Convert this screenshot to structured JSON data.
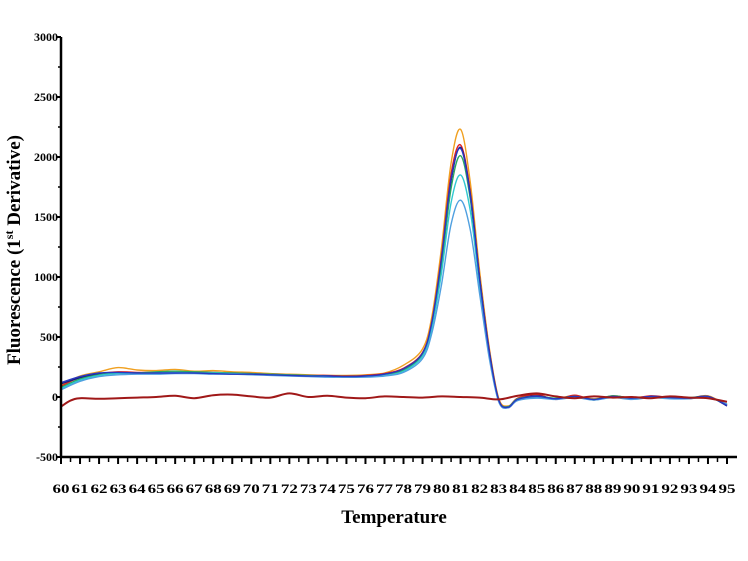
{
  "chart_data": {
    "type": "line",
    "title": "",
    "xlabel": "Temperature",
    "ylabel": "Fluorescence (1",
    "ylabel_sup": "st",
    "ylabel_end": " Derivative)",
    "xlim": [
      60,
      95
    ],
    "ylim": [
      -500,
      3000
    ],
    "yticks": [
      -500,
      0,
      500,
      1000,
      1500,
      2000,
      2500,
      3000
    ],
    "ytick_labels": [
      "-500",
      "0",
      "500",
      "1000",
      "1500",
      "2000",
      "2500",
      "3000"
    ],
    "xticks": [
      60,
      61,
      62,
      63,
      64,
      65,
      66,
      67,
      68,
      69,
      70,
      71,
      72,
      73,
      74,
      75,
      76,
      77,
      78,
      79,
      80,
      81,
      82,
      83,
      84,
      85,
      86,
      87,
      88,
      89,
      90,
      91,
      92,
      93,
      94,
      95
    ],
    "xtick_labels": [
      "60",
      "61",
      "62",
      "63",
      "64",
      "65",
      "66",
      "67",
      "68",
      "69",
      "70",
      "71",
      "72",
      "73",
      "74",
      "75",
      "76",
      "77",
      "78",
      "79",
      "80",
      "81",
      "82",
      "83",
      "84",
      "85",
      "86",
      "87",
      "88",
      "89",
      "90",
      "91",
      "92",
      "93",
      "94",
      "95"
    ],
    "grid": false,
    "legend": "none",
    "series": [
      {
        "color": "#f0a020",
        "x": [
          60,
          61,
          62,
          63,
          64,
          65,
          66,
          67,
          68,
          69,
          70,
          71,
          72,
          73,
          74,
          75,
          76,
          77,
          78,
          79,
          79.5,
          80,
          80.5,
          81,
          81.5,
          82,
          82.5,
          83,
          83.5,
          84,
          85,
          86,
          87,
          88,
          89,
          90,
          91,
          92,
          93,
          94,
          95
        ],
        "y": [
          100,
          175,
          210,
          245,
          225,
          220,
          230,
          215,
          220,
          210,
          205,
          195,
          190,
          185,
          180,
          180,
          185,
          200,
          265,
          400,
          680,
          1250,
          1950,
          2230,
          1800,
          1050,
          420,
          -10,
          -75,
          -20,
          0,
          -10,
          10,
          -15,
          5,
          -5,
          5,
          0,
          -10,
          10,
          -70
        ]
      },
      {
        "color": "#e02020",
        "x": [
          60,
          61,
          62,
          63,
          64,
          65,
          66,
          67,
          68,
          69,
          70,
          71,
          72,
          73,
          74,
          75,
          76,
          77,
          78,
          79,
          79.5,
          80,
          80.5,
          81,
          81.5,
          82,
          82.5,
          83,
          83.5,
          84,
          85,
          86,
          87,
          88,
          89,
          90,
          91,
          92,
          93,
          94,
          95
        ],
        "y": [
          90,
          165,
          195,
          210,
          205,
          205,
          210,
          205,
          205,
          200,
          195,
          190,
          185,
          180,
          180,
          175,
          180,
          195,
          240,
          370,
          640,
          1180,
          1860,
          2100,
          1720,
          1000,
          400,
          -20,
          -80,
          -10,
          20,
          -20,
          15,
          -25,
          10,
          -10,
          10,
          -5,
          -15,
          5,
          -70
        ]
      },
      {
        "color": "#1a1a80",
        "x": [
          60,
          61,
          62,
          63,
          64,
          65,
          66,
          67,
          68,
          69,
          70,
          71,
          72,
          73,
          74,
          75,
          76,
          77,
          78,
          79,
          79.5,
          80,
          80.5,
          81,
          81.5,
          82,
          82.5,
          83,
          83.5,
          84,
          85,
          86,
          87,
          88,
          89,
          90,
          91,
          92,
          93,
          94,
          95
        ],
        "y": [
          110,
          160,
          190,
          200,
          200,
          200,
          205,
          200,
          200,
          195,
          190,
          190,
          180,
          175,
          175,
          170,
          175,
          190,
          230,
          360,
          620,
          1140,
          1800,
          2080,
          1700,
          990,
          390,
          -30,
          -90,
          -20,
          10,
          -15,
          5,
          -20,
          5,
          -15,
          5,
          -5,
          -10,
          5,
          -75
        ]
      },
      {
        "color": "#2aa860",
        "x": [
          60,
          61,
          62,
          63,
          64,
          65,
          66,
          67,
          68,
          69,
          70,
          71,
          72,
          73,
          74,
          75,
          76,
          77,
          78,
          79,
          79.5,
          80,
          80.5,
          81,
          81.5,
          82,
          82.5,
          83,
          83.5,
          84,
          85,
          86,
          87,
          88,
          89,
          90,
          91,
          92,
          93,
          94,
          95
        ],
        "y": [
          80,
          150,
          185,
          200,
          200,
          210,
          215,
          210,
          205,
          200,
          195,
          190,
          185,
          180,
          175,
          170,
          175,
          185,
          225,
          350,
          600,
          1100,
          1740,
          2010,
          1660,
          970,
          380,
          -25,
          -80,
          -15,
          5,
          -10,
          5,
          -20,
          10,
          -10,
          0,
          -10,
          -5,
          0,
          -65
        ]
      },
      {
        "color": "#30c8d0",
        "x": [
          60,
          61,
          62,
          63,
          64,
          65,
          66,
          67,
          68,
          69,
          70,
          71,
          72,
          73,
          74,
          75,
          76,
          77,
          78,
          79,
          79.5,
          80,
          80.5,
          81,
          81.5,
          82,
          82.5,
          83,
          83.5,
          84,
          85,
          86,
          87,
          88,
          89,
          90,
          91,
          92,
          93,
          94,
          95
        ],
        "y": [
          70,
          140,
          180,
          195,
          195,
          200,
          205,
          200,
          200,
          195,
          190,
          185,
          180,
          175,
          170,
          165,
          170,
          180,
          215,
          340,
          580,
          1040,
          1620,
          1850,
          1560,
          930,
          360,
          -30,
          -85,
          -20,
          0,
          -15,
          0,
          -25,
          0,
          -15,
          0,
          -10,
          -10,
          0,
          -60
        ]
      },
      {
        "color": "#50a0e0",
        "x": [
          60,
          61,
          62,
          63,
          64,
          65,
          66,
          67,
          68,
          69,
          70,
          71,
          72,
          73,
          74,
          75,
          76,
          77,
          78,
          79,
          79.5,
          80,
          80.5,
          81,
          81.5,
          82,
          82.5,
          83,
          83.5,
          84,
          85,
          86,
          87,
          88,
          89,
          90,
          91,
          92,
          93,
          94,
          95
        ],
        "y": [
          60,
          130,
          170,
          185,
          190,
          190,
          195,
          195,
          190,
          190,
          185,
          180,
          175,
          170,
          165,
          165,
          165,
          175,
          205,
          320,
          540,
          940,
          1440,
          1640,
          1400,
          860,
          330,
          -40,
          -90,
          -30,
          -10,
          -20,
          -5,
          -25,
          -5,
          -20,
          -5,
          -15,
          -15,
          -5,
          -60
        ]
      },
      {
        "color": "#2838c0",
        "x": [
          60,
          61,
          62,
          63,
          64,
          65,
          66,
          67,
          68,
          69,
          70,
          71,
          72,
          73,
          74,
          75,
          76,
          77,
          78,
          79,
          79.5,
          80,
          80.5,
          81,
          81.5,
          82,
          82.5,
          83,
          83.5,
          84,
          85,
          86,
          87,
          88,
          89,
          90,
          91,
          92,
          93,
          94,
          95
        ],
        "y": [
          120,
          170,
          200,
          205,
          200,
          200,
          200,
          200,
          195,
          190,
          190,
          185,
          180,
          175,
          175,
          170,
          175,
          190,
          235,
          365,
          630,
          1160,
          1820,
          2070,
          1690,
          980,
          385,
          -25,
          -85,
          -20,
          5,
          -15,
          5,
          -20,
          5,
          -10,
          5,
          -5,
          -10,
          5,
          -70
        ]
      },
      {
        "color": "#a01818",
        "x": [
          60,
          60.5,
          61,
          62,
          63,
          64,
          65,
          66,
          67,
          68,
          69,
          70,
          71,
          72,
          73,
          74,
          75,
          76,
          77,
          78,
          79,
          80,
          81,
          82,
          83,
          84,
          85,
          86,
          87,
          88,
          89,
          90,
          91,
          92,
          93,
          94,
          95
        ],
        "y": [
          -80,
          -30,
          -10,
          -15,
          -10,
          -5,
          0,
          10,
          -10,
          15,
          20,
          5,
          -5,
          30,
          0,
          10,
          -5,
          -10,
          5,
          0,
          -5,
          5,
          0,
          -5,
          -20,
          10,
          30,
          5,
          -10,
          5,
          -5,
          0,
          -10,
          5,
          -5,
          -10,
          -40
        ]
      }
    ]
  }
}
